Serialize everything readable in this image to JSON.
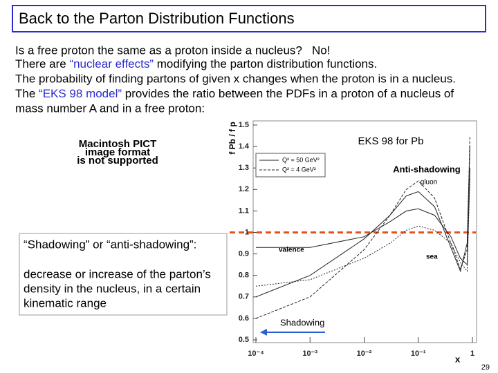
{
  "title": "Back to the Parton Distribution Functions",
  "body": {
    "line1": "Is a free proton the same as a proton inside a nucleus?   No!",
    "line2": [
      "There are ",
      "“nuclear effects”",
      " modifying the parton distribution functions."
    ],
    "line3": "The probability of finding partons of given x changes when the proton is in a nucleus.",
    "line4": [
      "The ",
      "“EKS 98 model”",
      " provides the ratio between the PDFs in a proton of a nucleus of"
    ],
    "line5": "mass number A and in a free proton:"
  },
  "placeholder": [
    "Macintosh PICT",
    "image format",
    "is not supported"
  ],
  "box": {
    "heading": "“Shadowing” or “anti-shadowing”:",
    "lines": [
      "decrease or increase of the parton’s",
      "density in the nucleus, in a certain",
      "kinematic range"
    ]
  },
  "slide_number": "29",
  "chart_data": {
    "type": "line",
    "title": "EKS 98 for Pb",
    "y_label": "f Pb / f p",
    "x_label": "x",
    "log_x": true,
    "xlim": [
      0.0001,
      1
    ],
    "xticks": [
      {
        "value": 0.0001,
        "label": "10⁻⁴"
      },
      {
        "value": 0.001,
        "label": "10⁻³"
      },
      {
        "value": 0.01,
        "label": "10⁻²"
      },
      {
        "value": 0.1,
        "label": "10⁻¹"
      },
      1
    ],
    "ylim": [
      0.5,
      1.5
    ],
    "yticks": [
      0.5,
      0.6,
      0.7,
      0.8,
      0.9,
      1,
      {
        "value": 1.1,
        "label": "1.1"
      },
      1.2,
      1.3,
      1.4,
      1.5
    ],
    "reference_line": {
      "value": 1,
      "color": "#e8501a"
    },
    "legend": [
      "Q² = 50 GeV²",
      "Q² = 4 GeV²"
    ],
    "annotations": {
      "anti": "Anti-shadowing",
      "shadowing": "Shadowing",
      "gluon": "gluon",
      "valence": "valence",
      "sea": "sea"
    },
    "x": [
      0.0001,
      0.001,
      0.01,
      0.03,
      0.06,
      0.1,
      0.2,
      0.4,
      0.6,
      0.8,
      0.9
    ],
    "series": [
      {
        "color": "#222",
        "dash": "none",
        "values": [
          0.7,
          0.8,
          0.97,
          1.08,
          1.17,
          1.19,
          1.12,
          0.93,
          0.82,
          0.95,
          1.4
        ]
      },
      {
        "color": "#222",
        "dash": "4 2",
        "values": [
          0.6,
          0.7,
          0.92,
          1.08,
          1.2,
          1.24,
          1.16,
          0.95,
          0.83,
          0.92,
          1.45
        ]
      },
      {
        "color": "#222",
        "dash": "none",
        "values": [
          0.93,
          0.93,
          0.98,
          1.05,
          1.1,
          1.11,
          1.08,
          0.98,
          0.88,
          0.85,
          1.3
        ]
      },
      {
        "color": "#222",
        "dash": "2 2",
        "values": [
          0.75,
          0.78,
          0.88,
          0.95,
          1.01,
          1.03,
          1.01,
          0.95,
          0.86,
          0.82,
          1.25
        ]
      }
    ]
  }
}
